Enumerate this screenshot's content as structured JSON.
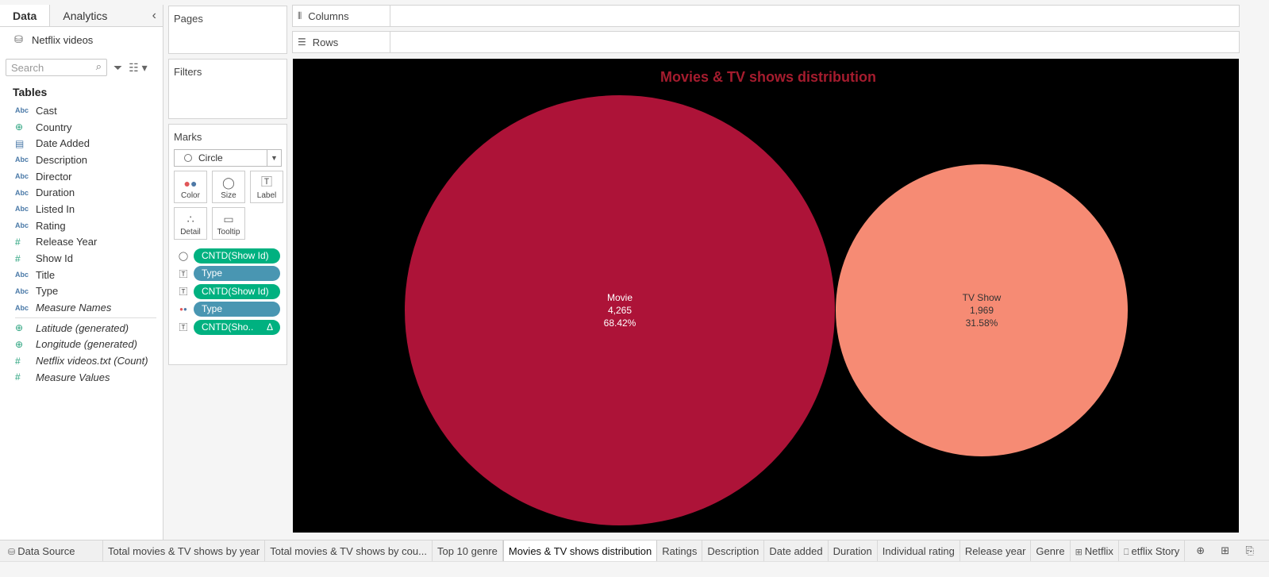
{
  "data_pane": {
    "tab_data": "Data",
    "tab_analytics": "Analytics",
    "datasource": "Netflix videos",
    "search_placeholder": "Search",
    "tables_title": "Tables",
    "fields": [
      {
        "label": "Cast",
        "type": "Abc"
      },
      {
        "label": "Country",
        "type": "globe"
      },
      {
        "label": "Date Added",
        "type": "date"
      },
      {
        "label": "Description",
        "type": "Abc"
      },
      {
        "label": "Director",
        "type": "Abc"
      },
      {
        "label": "Duration",
        "type": "Abc"
      },
      {
        "label": "Listed In",
        "type": "Abc"
      },
      {
        "label": "Rating",
        "type": "Abc"
      },
      {
        "label": "Release Year",
        "type": "#"
      },
      {
        "label": "Show Id",
        "type": "#"
      },
      {
        "label": "Title",
        "type": "Abc"
      },
      {
        "label": "Type",
        "type": "Abc"
      },
      {
        "label": "Measure Names",
        "type": "Abc"
      }
    ],
    "measures": [
      {
        "label": "Latitude (generated)",
        "type": "globe"
      },
      {
        "label": "Longitude (generated)",
        "type": "globe"
      },
      {
        "label": "Netflix videos.txt (Count)",
        "type": "#"
      },
      {
        "label": "Measure Values",
        "type": "#"
      }
    ]
  },
  "shelves": {
    "pages": "Pages",
    "filters": "Filters",
    "columns": "Columns",
    "rows": "Rows"
  },
  "marks": {
    "title": "Marks",
    "mark_type": "Circle",
    "buttons": {
      "color": "Color",
      "size": "Size",
      "label": "Label",
      "detail": "Detail",
      "tooltip": "Tooltip"
    },
    "pills": [
      {
        "icon": "size",
        "label": "CNTD(Show Id)",
        "color": "green"
      },
      {
        "icon": "label",
        "label": "Type",
        "color": "blue"
      },
      {
        "icon": "label",
        "label": "CNTD(Show Id)",
        "color": "green"
      },
      {
        "icon": "color",
        "label": "Type",
        "color": "blue"
      },
      {
        "icon": "label",
        "label": "CNTD(Sho..",
        "color": "green",
        "delta": "Δ"
      }
    ]
  },
  "chart_data": {
    "type": "bubble",
    "title": "Movies & TV shows distribution",
    "background": "#000000",
    "title_color": "#a51c2e",
    "series": [
      {
        "name": "Movie",
        "count": 4265,
        "count_label": "4,265",
        "percent_label": "68.42%",
        "color": "#ad1338",
        "text_color": "#ffffff"
      },
      {
        "name": "TV Show",
        "count": 1969,
        "count_label": "1,969",
        "percent_label": "31.58%",
        "color": "#f68b74",
        "text_color": "#333333"
      }
    ]
  },
  "sheet_tabs": [
    {
      "label": "Data Source",
      "icon": "datasource-icon"
    },
    {
      "label": "Total movies & TV shows by year"
    },
    {
      "label": "Total movies & TV shows by cou..."
    },
    {
      "label": "Top 10 genre"
    },
    {
      "label": "Movies & TV shows distribution",
      "active": true
    },
    {
      "label": "Ratings"
    },
    {
      "label": "Description"
    },
    {
      "label": "Date added"
    },
    {
      "label": "Duration"
    },
    {
      "label": "Individual rating"
    },
    {
      "label": "Release year"
    },
    {
      "label": "Genre"
    },
    {
      "label": "Netflix",
      "icon": "dashboard-icon"
    },
    {
      "label": "etflix Story",
      "icon": "story-icon"
    }
  ]
}
